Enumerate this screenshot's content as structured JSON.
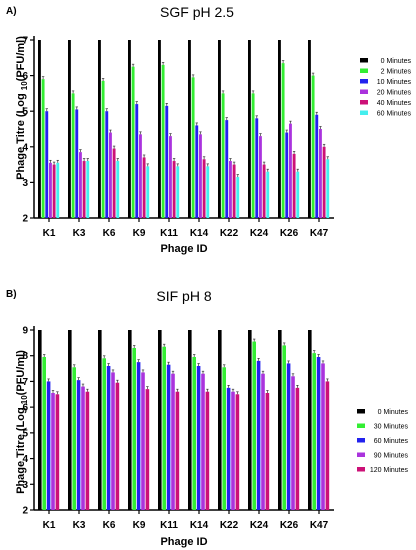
{
  "chart_data": [
    {
      "panel": "A)",
      "type": "bar",
      "title": "SGF pH 2.5",
      "xlabel": "Phage ID",
      "ylabel_pre": "Phage Titre (Log ",
      "ylabel_sub": "10",
      "ylabel_post": "(PFU/ml)",
      "ylim": [
        2,
        7
      ],
      "yticks": [
        2,
        3,
        4,
        5,
        6,
        7
      ],
      "categories": [
        "K1",
        "K3",
        "K6",
        "K9",
        "K11",
        "K14",
        "K22",
        "K24",
        "K26",
        "K47"
      ],
      "series": [
        {
          "name": "0 Minutes",
          "color": "#000000",
          "values": [
            7,
            7,
            7,
            7,
            7,
            7,
            7,
            7,
            7,
            7
          ]
        },
        {
          "name": "2 Minutes",
          "color": "#33ee33",
          "values": [
            5.9,
            5.5,
            5.85,
            6.25,
            6.3,
            5.95,
            5.5,
            5.5,
            6.35,
            6.0
          ]
        },
        {
          "name": "10 Minutes",
          "color": "#2222ee",
          "values": [
            5.0,
            5.05,
            5.0,
            5.2,
            5.15,
            4.6,
            4.75,
            4.8,
            4.4,
            4.9
          ]
        },
        {
          "name": "20 Minutes",
          "color": "#aa33dd",
          "values": [
            3.55,
            3.85,
            4.4,
            4.35,
            4.3,
            4.35,
            3.6,
            4.3,
            4.65,
            4.5
          ]
        },
        {
          "name": "40 Minutes",
          "color": "#cc1177",
          "values": [
            3.5,
            3.6,
            3.95,
            3.7,
            3.6,
            3.65,
            3.5,
            3.5,
            3.8,
            4.0
          ]
        },
        {
          "name": "60 Minutes",
          "color": "#44eeee",
          "values": [
            3.55,
            3.6,
            3.6,
            3.45,
            3.45,
            3.45,
            3.15,
            3.3,
            3.3,
            3.65
          ]
        }
      ],
      "legend_position": "right"
    },
    {
      "panel": "B)",
      "type": "bar",
      "title": "SIF pH 8",
      "xlabel": "Phage ID",
      "ylabel_pre": "Phage Titre (Log ",
      "ylabel_sub": "10",
      "ylabel_post": "(PFU/ml)",
      "ylim": [
        2,
        9
      ],
      "yticks": [
        2,
        3,
        4,
        5,
        6,
        7,
        8,
        9
      ],
      "categories": [
        "K1",
        "K3",
        "K6",
        "K9",
        "K11",
        "K14",
        "K22",
        "K24",
        "K26",
        "K47"
      ],
      "series": [
        {
          "name": "0 Minutes",
          "color": "#000000",
          "values": [
            9,
            9,
            9,
            9,
            9,
            9,
            9,
            9,
            9,
            9
          ]
        },
        {
          "name": "30 Minutes",
          "color": "#33ee33",
          "values": [
            7.95,
            7.55,
            7.9,
            8.3,
            8.35,
            7.95,
            7.55,
            8.55,
            8.4,
            8.1
          ]
        },
        {
          "name": "60 Minutes",
          "color": "#2222ee",
          "values": [
            7.0,
            7.05,
            7.6,
            7.75,
            7.65,
            7.6,
            6.75,
            7.8,
            7.7,
            7.95
          ]
        },
        {
          "name": "90 Minutes",
          "color": "#aa33dd",
          "values": [
            6.55,
            6.8,
            7.35,
            7.35,
            7.3,
            7.3,
            6.6,
            7.3,
            7.2,
            7.7
          ]
        },
        {
          "name": "120 Minutes",
          "color": "#cc1177",
          "values": [
            6.5,
            6.6,
            6.95,
            6.7,
            6.6,
            6.6,
            6.5,
            6.55,
            6.75,
            7.0
          ]
        }
      ],
      "legend_position": "right"
    }
  ]
}
